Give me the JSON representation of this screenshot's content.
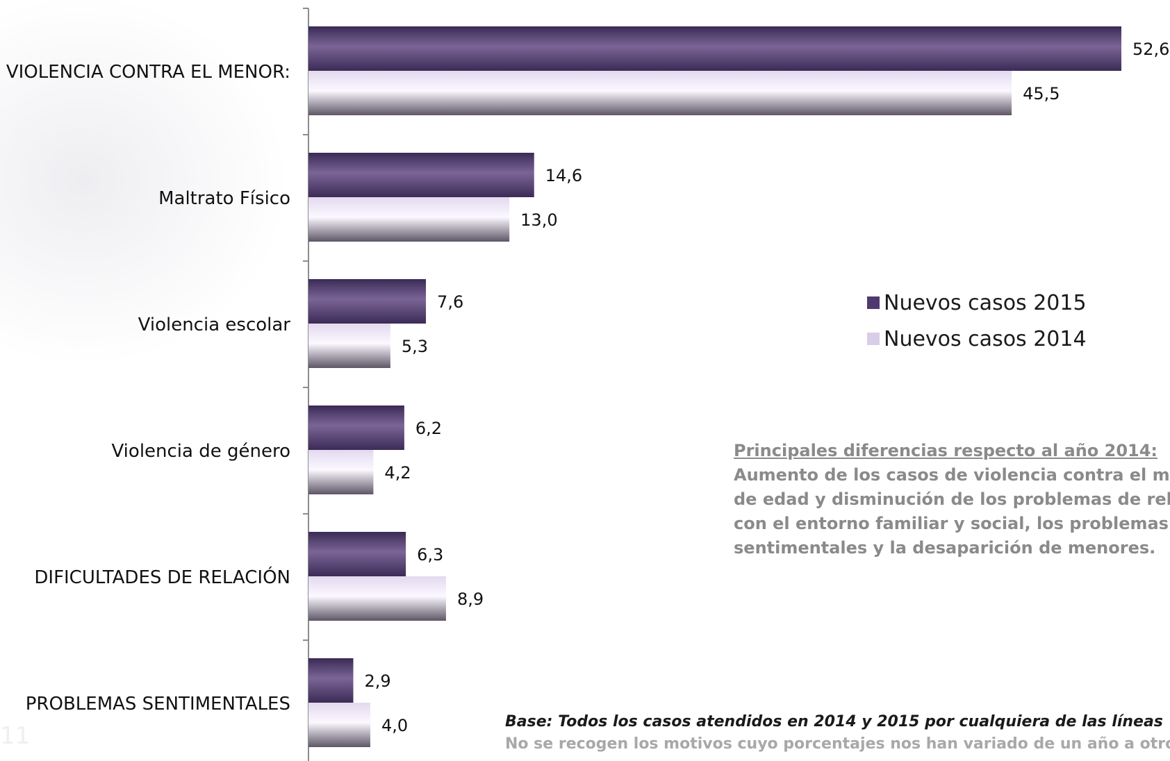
{
  "chart_data": {
    "type": "bar",
    "orientation": "horizontal",
    "categories": [
      "VIOLENCIA CONTRA EL MENOR:",
      "Maltrato Físico",
      "Violencia escolar",
      "Violencia de género",
      "DIFICULTADES DE RELACIÓN",
      "PROBLEMAS SENTIMENTALES"
    ],
    "series": [
      {
        "name": "Nuevos casos 2015",
        "values": [
          52.6,
          14.6,
          7.6,
          6.2,
          6.3,
          2.9
        ],
        "labels": [
          "52,6",
          "14,6",
          "7,6",
          "6,2",
          "6,3",
          "2,9"
        ],
        "color": "#4f3a6f"
      },
      {
        "name": "Nuevos casos 2014",
        "values": [
          45.5,
          13.0,
          5.3,
          4.2,
          8.9,
          4.0
        ],
        "labels": [
          "45,5",
          "13,0",
          "5,3",
          "4,2",
          "8,9",
          "4,0"
        ],
        "color": "#d9cde8"
      }
    ],
    "xlim": [
      0,
      55
    ],
    "grid": false,
    "legend_position": "right"
  },
  "legend": {
    "items": [
      {
        "label": "Nuevos casos 2015",
        "color": "#4f3a6f"
      },
      {
        "label": "Nuevos casos 2014",
        "color": "#d9cde8"
      }
    ]
  },
  "notes": {
    "heading": "Principales diferencias respecto al año 2014:",
    "lines": [
      "Aumento de los casos de violencia contra el menor",
      "de edad y disminución de los problemas de relación",
      "con el entorno familiar y social,  los problemas",
      "sentimentales y la desaparición de menores."
    ]
  },
  "base": {
    "main": "Base: Todos los casos atendidos en 2014 y 2015 por cualquiera de las líneas",
    "sub": "No se recogen los motivos cuyo porcentajes nos han variado de un año a otro"
  },
  "page_number": "11"
}
